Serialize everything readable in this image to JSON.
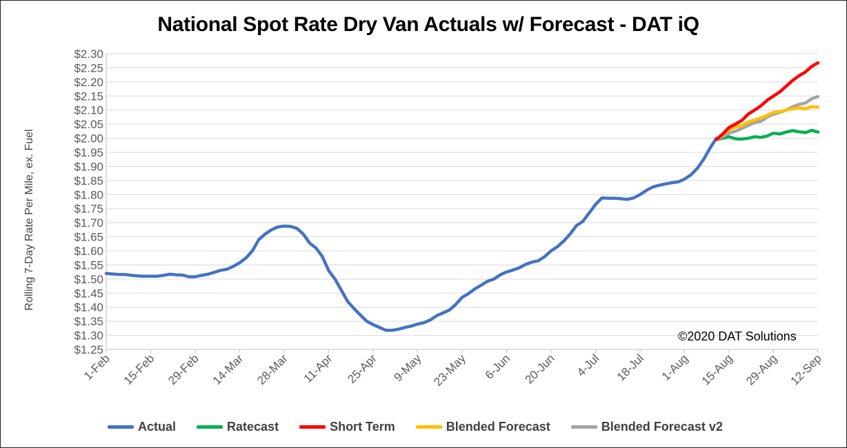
{
  "chart_data": {
    "type": "line",
    "title": "National Spot Rate Dry Van Actuals w/ Forecast - DAT iQ",
    "ylabel": "Rolling 7-Day Rate Per Mile, ex. Fuel",
    "xlabel": "",
    "annotation": "©2020 DAT Solutions",
    "ylim": [
      1.25,
      2.3
    ],
    "y_ticks": [
      "$1.25",
      "$1.30",
      "$1.35",
      "$1.40",
      "$1.45",
      "$1.50",
      "$1.55",
      "$1.60",
      "$1.65",
      "$1.70",
      "$1.75",
      "$1.80",
      "$1.85",
      "$1.90",
      "$1.95",
      "$2.00",
      "$2.05",
      "$2.10",
      "$2.15",
      "$2.20",
      "$2.25",
      "$2.30"
    ],
    "x_ticks": [
      "1-Feb",
      "15-Feb",
      "29-Feb",
      "14-Mar",
      "28-Mar",
      "11-Apr",
      "25-Apr",
      "9-May",
      "23-May",
      "6-Jun",
      "20-Jun",
      "4-Jul",
      "18-Jul",
      "1-Aug",
      "15-Aug",
      "29-Aug",
      "12-Sep"
    ],
    "x_tick_dates": [
      "2020-02-01",
      "2020-02-15",
      "2020-02-29",
      "2020-03-14",
      "2020-03-28",
      "2020-04-11",
      "2020-04-25",
      "2020-05-09",
      "2020-05-23",
      "2020-06-06",
      "2020-06-20",
      "2020-07-04",
      "2020-07-18",
      "2020-08-01",
      "2020-08-15",
      "2020-08-29",
      "2020-09-12"
    ],
    "x_range": [
      "2020-02-01",
      "2020-09-12"
    ],
    "grid": "horizontal",
    "legend_position": "bottom",
    "series": [
      {
        "name": "Actual",
        "color": "#4472C4",
        "points": [
          [
            "2020-02-01",
            1.52
          ],
          [
            "2020-02-03",
            1.518
          ],
          [
            "2020-02-05",
            1.516
          ],
          [
            "2020-02-07",
            1.516
          ],
          [
            "2020-02-09",
            1.513
          ],
          [
            "2020-02-11",
            1.511
          ],
          [
            "2020-02-13",
            1.51
          ],
          [
            "2020-02-15",
            1.51
          ],
          [
            "2020-02-17",
            1.51
          ],
          [
            "2020-02-19",
            1.513
          ],
          [
            "2020-02-21",
            1.517
          ],
          [
            "2020-02-23",
            1.515
          ],
          [
            "2020-02-25",
            1.514
          ],
          [
            "2020-02-27",
            1.508
          ],
          [
            "2020-02-29",
            1.508
          ],
          [
            "2020-03-02",
            1.513
          ],
          [
            "2020-03-04",
            1.517
          ],
          [
            "2020-03-06",
            1.524
          ],
          [
            "2020-03-08",
            1.531
          ],
          [
            "2020-03-10",
            1.535
          ],
          [
            "2020-03-12",
            1.545
          ],
          [
            "2020-03-14",
            1.558
          ],
          [
            "2020-03-16",
            1.575
          ],
          [
            "2020-03-18",
            1.6
          ],
          [
            "2020-03-20",
            1.64
          ],
          [
            "2020-03-22",
            1.66
          ],
          [
            "2020-03-24",
            1.675
          ],
          [
            "2020-03-26",
            1.685
          ],
          [
            "2020-03-28",
            1.688
          ],
          [
            "2020-03-30",
            1.687
          ],
          [
            "2020-04-01",
            1.68
          ],
          [
            "2020-04-03",
            1.66
          ],
          [
            "2020-04-05",
            1.628
          ],
          [
            "2020-04-07",
            1.61
          ],
          [
            "2020-04-09",
            1.58
          ],
          [
            "2020-04-11",
            1.53
          ],
          [
            "2020-04-13",
            1.5
          ],
          [
            "2020-04-15",
            1.46
          ],
          [
            "2020-04-17",
            1.42
          ],
          [
            "2020-04-19",
            1.395
          ],
          [
            "2020-04-21",
            1.372
          ],
          [
            "2020-04-23",
            1.35
          ],
          [
            "2020-04-25",
            1.338
          ],
          [
            "2020-04-27",
            1.328
          ],
          [
            "2020-04-29",
            1.318
          ],
          [
            "2020-05-01",
            1.318
          ],
          [
            "2020-05-03",
            1.322
          ],
          [
            "2020-05-05",
            1.328
          ],
          [
            "2020-05-07",
            1.333
          ],
          [
            "2020-05-09",
            1.34
          ],
          [
            "2020-05-11",
            1.345
          ],
          [
            "2020-05-13",
            1.355
          ],
          [
            "2020-05-15",
            1.37
          ],
          [
            "2020-05-17",
            1.38
          ],
          [
            "2020-05-19",
            1.39
          ],
          [
            "2020-05-21",
            1.41
          ],
          [
            "2020-05-23",
            1.435
          ],
          [
            "2020-05-25",
            1.448
          ],
          [
            "2020-05-27",
            1.465
          ],
          [
            "2020-05-29",
            1.478
          ],
          [
            "2020-05-31",
            1.492
          ],
          [
            "2020-06-02",
            1.5
          ],
          [
            "2020-06-04",
            1.515
          ],
          [
            "2020-06-06",
            1.525
          ],
          [
            "2020-06-08",
            1.532
          ],
          [
            "2020-06-10",
            1.54
          ],
          [
            "2020-06-12",
            1.552
          ],
          [
            "2020-06-14",
            1.56
          ],
          [
            "2020-06-16",
            1.565
          ],
          [
            "2020-06-18",
            1.58
          ],
          [
            "2020-06-20",
            1.6
          ],
          [
            "2020-06-22",
            1.615
          ],
          [
            "2020-06-24",
            1.635
          ],
          [
            "2020-06-26",
            1.66
          ],
          [
            "2020-06-28",
            1.69
          ],
          [
            "2020-06-30",
            1.705
          ],
          [
            "2020-07-02",
            1.735
          ],
          [
            "2020-07-04",
            1.765
          ],
          [
            "2020-07-06",
            1.788
          ],
          [
            "2020-07-08",
            1.787
          ],
          [
            "2020-07-10",
            1.787
          ],
          [
            "2020-07-12",
            1.785
          ],
          [
            "2020-07-14",
            1.783
          ],
          [
            "2020-07-16",
            1.788
          ],
          [
            "2020-07-18",
            1.8
          ],
          [
            "2020-07-20",
            1.815
          ],
          [
            "2020-07-22",
            1.827
          ],
          [
            "2020-07-24",
            1.833
          ],
          [
            "2020-07-26",
            1.838
          ],
          [
            "2020-07-28",
            1.842
          ],
          [
            "2020-07-30",
            1.845
          ],
          [
            "2020-08-01",
            1.855
          ],
          [
            "2020-08-03",
            1.87
          ],
          [
            "2020-08-05",
            1.893
          ],
          [
            "2020-08-07",
            1.925
          ],
          [
            "2020-08-09",
            1.965
          ],
          [
            "2020-08-11",
            2.0
          ]
        ]
      },
      {
        "name": "Ratecast",
        "color": "#00B050",
        "points": [
          [
            "2020-08-11",
            1.995
          ],
          [
            "2020-08-13",
            2.0
          ],
          [
            "2020-08-15",
            2.005
          ],
          [
            "2020-08-17",
            1.998
          ],
          [
            "2020-08-19",
            1.997
          ],
          [
            "2020-08-21",
            2.0
          ],
          [
            "2020-08-23",
            2.005
          ],
          [
            "2020-08-25",
            2.003
          ],
          [
            "2020-08-27",
            2.008
          ],
          [
            "2020-08-29",
            2.018
          ],
          [
            "2020-08-31",
            2.015
          ],
          [
            "2020-09-02",
            2.022
          ],
          [
            "2020-09-04",
            2.027
          ],
          [
            "2020-09-06",
            2.023
          ],
          [
            "2020-09-08",
            2.02
          ],
          [
            "2020-09-10",
            2.028
          ],
          [
            "2020-09-12",
            2.022
          ]
        ]
      },
      {
        "name": "Short Term",
        "color": "#FF0000",
        "points": [
          [
            "2020-08-11",
            1.995
          ],
          [
            "2020-08-13",
            2.015
          ],
          [
            "2020-08-15",
            2.038
          ],
          [
            "2020-08-17",
            2.05
          ],
          [
            "2020-08-19",
            2.063
          ],
          [
            "2020-08-21",
            2.085
          ],
          [
            "2020-08-23",
            2.1
          ],
          [
            "2020-08-25",
            2.115
          ],
          [
            "2020-08-27",
            2.135
          ],
          [
            "2020-08-29",
            2.15
          ],
          [
            "2020-08-31",
            2.165
          ],
          [
            "2020-09-02",
            2.185
          ],
          [
            "2020-09-04",
            2.205
          ],
          [
            "2020-09-06",
            2.222
          ],
          [
            "2020-09-08",
            2.235
          ],
          [
            "2020-09-10",
            2.255
          ],
          [
            "2020-09-12",
            2.268
          ]
        ]
      },
      {
        "name": "Blended Forecast",
        "color": "#FFC000",
        "points": [
          [
            "2020-08-11",
            1.995
          ],
          [
            "2020-08-13",
            2.012
          ],
          [
            "2020-08-15",
            2.03
          ],
          [
            "2020-08-17",
            2.04
          ],
          [
            "2020-08-19",
            2.045
          ],
          [
            "2020-08-21",
            2.058
          ],
          [
            "2020-08-23",
            2.065
          ],
          [
            "2020-08-25",
            2.072
          ],
          [
            "2020-08-27",
            2.082
          ],
          [
            "2020-08-29",
            2.092
          ],
          [
            "2020-08-31",
            2.095
          ],
          [
            "2020-09-02",
            2.1
          ],
          [
            "2020-09-04",
            2.105
          ],
          [
            "2020-09-06",
            2.108
          ],
          [
            "2020-09-08",
            2.105
          ],
          [
            "2020-09-10",
            2.112
          ],
          [
            "2020-09-12",
            2.11
          ]
        ]
      },
      {
        "name": "Blended Forecast v2",
        "color": "#A5A5A5",
        "points": [
          [
            "2020-08-11",
            1.995
          ],
          [
            "2020-08-13",
            2.005
          ],
          [
            "2020-08-15",
            2.018
          ],
          [
            "2020-08-17",
            2.025
          ],
          [
            "2020-08-19",
            2.035
          ],
          [
            "2020-08-21",
            2.045
          ],
          [
            "2020-08-23",
            2.055
          ],
          [
            "2020-08-25",
            2.06
          ],
          [
            "2020-08-27",
            2.075
          ],
          [
            "2020-08-29",
            2.085
          ],
          [
            "2020-08-31",
            2.092
          ],
          [
            "2020-09-02",
            2.1
          ],
          [
            "2020-09-04",
            2.112
          ],
          [
            "2020-09-06",
            2.12
          ],
          [
            "2020-09-08",
            2.125
          ],
          [
            "2020-09-10",
            2.14
          ],
          [
            "2020-09-12",
            2.148
          ]
        ]
      }
    ]
  }
}
